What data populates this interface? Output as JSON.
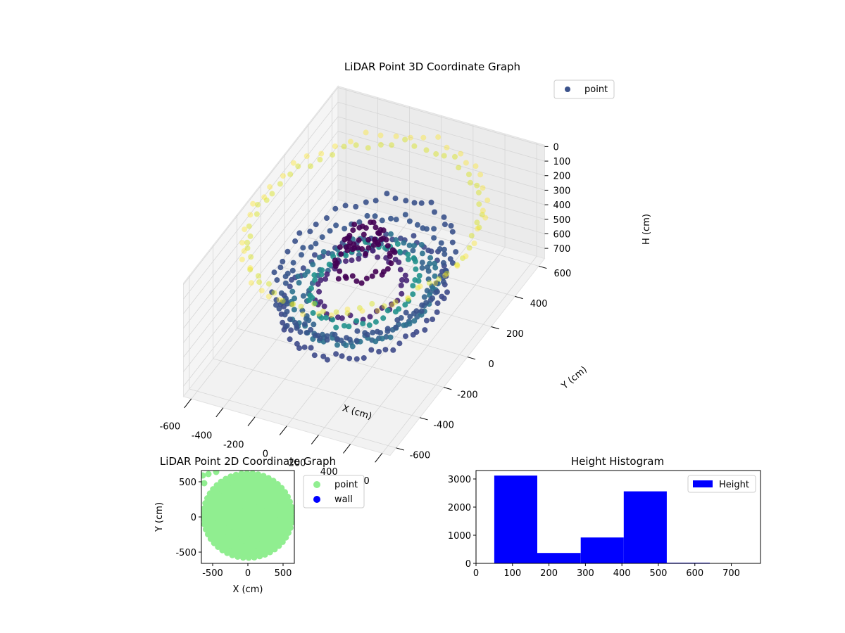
{
  "chart_data": [
    {
      "type": "scatter",
      "title": "LiDAR Point 3D Coordinate Graph",
      "xlabel": "X (cm)",
      "ylabel": "Y (cm)",
      "zlabel": "H (cm)",
      "xlim": [
        -650,
        650
      ],
      "ylim": [
        -650,
        650
      ],
      "zlim": [
        0,
        750
      ],
      "z_inverted": true,
      "xticks": [
        "-600",
        "-400",
        "-200",
        "0",
        "200",
        "400",
        "600"
      ],
      "yticks": [
        "-600",
        "-400",
        "-200",
        "0",
        "200",
        "400",
        "600"
      ],
      "zticks": [
        "0",
        "100",
        "200",
        "300",
        "400",
        "500",
        "600",
        "700"
      ],
      "colormap": "viridis",
      "legend": {
        "position": "top-right",
        "entries": [
          {
            "label": "point",
            "color": "#3b528b"
          }
        ]
      },
      "grid": true,
      "series": [
        {
          "name": "point",
          "groups": [
            {
              "shape": "ring",
              "cx": 0,
              "cy": 0,
              "rx": 430,
              "ry": 380,
              "h": 560,
              "count": 70,
              "color": "#3e4a89"
            },
            {
              "shape": "ring",
              "cx": 0,
              "cy": 0,
              "rx": 380,
              "ry": 330,
              "h": 520,
              "count": 60,
              "color": "#2c728e"
            },
            {
              "shape": "ring",
              "cx": 20,
              "cy": 0,
              "rx": 330,
              "ry": 290,
              "h": 540,
              "count": 55,
              "color": "#33638d"
            },
            {
              "shape": "ring",
              "cx": 0,
              "cy": 0,
              "rx": 280,
              "ry": 250,
              "h": 480,
              "count": 50,
              "color": "#21918c"
            },
            {
              "shape": "ring",
              "cx": 0,
              "cy": 0,
              "rx": 420,
              "ry": 380,
              "h": 430,
              "count": 65,
              "color": "#39568c"
            },
            {
              "shape": "ring",
              "cx": -20,
              "cy": 0,
              "rx": 230,
              "ry": 200,
              "h": 500,
              "count": 40,
              "color": "#482677"
            },
            {
              "shape": "ring",
              "cx": 0,
              "cy": 0,
              "rx": 150,
              "ry": 130,
              "h": 300,
              "count": 35,
              "color": "#440154"
            },
            {
              "shape": "ring",
              "cx": 0,
              "cy": 0,
              "rx": 90,
              "ry": 80,
              "h": 150,
              "count": 28,
              "color": "#440154"
            },
            {
              "shape": "ring",
              "cx": 0,
              "cy": 0,
              "rx": 460,
              "ry": 440,
              "h": 360,
              "count": 55,
              "color": "#3b528b"
            },
            {
              "shape": "ring",
              "cx": 0,
              "cy": 0,
              "rx": 620,
              "ry": 520,
              "h": 80,
              "count": 60,
              "color": "#d8e219",
              "alpha": 0.45
            },
            {
              "shape": "ring",
              "cx": 0,
              "cy": 0,
              "rx": 640,
              "ry": 560,
              "h": 60,
              "count": 50,
              "color": "#fde725",
              "alpha": 0.4
            }
          ]
        }
      ]
    },
    {
      "type": "scatter",
      "title": "LiDAR Point 2D Coordinate Graph",
      "xlabel": "X (cm)",
      "ylabel": "Y (cm)",
      "xlim": [
        -660,
        660
      ],
      "ylim": [
        -660,
        660
      ],
      "xticks": [
        -500,
        0,
        500
      ],
      "yticks": [
        -500,
        0,
        500
      ],
      "legend": {
        "position": "outside-right",
        "entries": [
          {
            "label": "point",
            "color": "#90ee90"
          },
          {
            "label": "wall",
            "color": "#0000ff"
          }
        ]
      },
      "series": [
        {
          "name": "point",
          "color": "#90ee90",
          "extent_x": [
            -640,
            640
          ],
          "extent_y": [
            -580,
            660
          ]
        },
        {
          "name": "wall",
          "color": "#0000ff",
          "values": []
        }
      ]
    },
    {
      "type": "bar",
      "subtype": "histogram",
      "title": "Height Histogram",
      "xlim": [
        0,
        780
      ],
      "ylim": [
        0,
        3300
      ],
      "xticks": [
        0,
        100,
        200,
        300,
        400,
        500,
        600,
        700
      ],
      "yticks": [
        0,
        1000,
        2000,
        3000
      ],
      "legend": {
        "position": "top-right",
        "entries": [
          {
            "label": "Height",
            "color": "#0000ff"
          }
        ]
      },
      "bin_edges": [
        50,
        168,
        287,
        405,
        523,
        641,
        760
      ],
      "values": [
        3120,
        370,
        920,
        2560,
        25,
        4
      ],
      "color": "#0000ff"
    }
  ]
}
